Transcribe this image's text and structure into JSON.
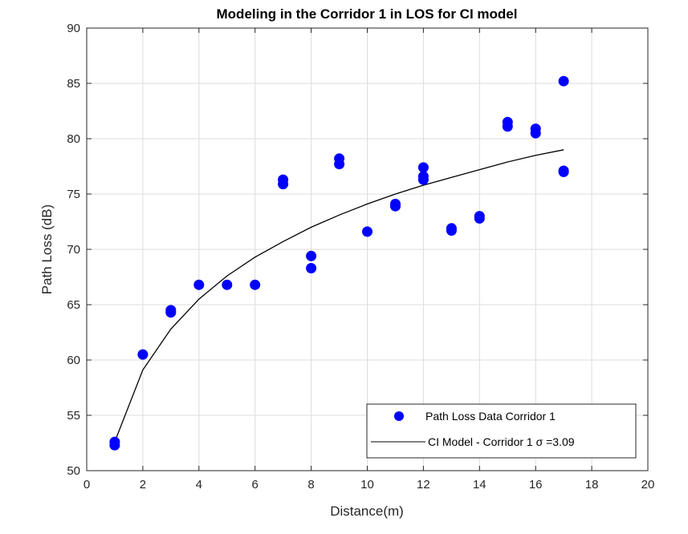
{
  "chart_data": {
    "type": "scatter",
    "title": "Modeling in the Corridor 1 in LOS for CI model",
    "xlabel": "Distance(m)",
    "ylabel": "Path Loss (dB)",
    "xlim": [
      0,
      20
    ],
    "ylim": [
      50,
      90
    ],
    "xticks": [
      0,
      2,
      4,
      6,
      8,
      10,
      12,
      14,
      16,
      18,
      20
    ],
    "yticks": [
      50,
      55,
      60,
      65,
      70,
      75,
      80,
      85,
      90
    ],
    "grid": true,
    "legend_position": "bottom-right",
    "series": [
      {
        "name": "Path Loss Data Corridor 1",
        "kind": "scatter",
        "color": "#0000ff",
        "points": [
          [
            1,
            52.3
          ],
          [
            1,
            52.6
          ],
          [
            2,
            60.5
          ],
          [
            3,
            64.3
          ],
          [
            3,
            64.5
          ],
          [
            4,
            66.8
          ],
          [
            5,
            66.8
          ],
          [
            6,
            66.8
          ],
          [
            7,
            75.9
          ],
          [
            7,
            76.3
          ],
          [
            8,
            68.3
          ],
          [
            8,
            69.4
          ],
          [
            9,
            77.7
          ],
          [
            9,
            78.2
          ],
          [
            10,
            71.6
          ],
          [
            11,
            73.9
          ],
          [
            11,
            74.1
          ],
          [
            12,
            76.3
          ],
          [
            12,
            76.6
          ],
          [
            12,
            77.4
          ],
          [
            13,
            71.7
          ],
          [
            13,
            71.9
          ],
          [
            14,
            72.8
          ],
          [
            14,
            73.0
          ],
          [
            15,
            81.1
          ],
          [
            15,
            81.5
          ],
          [
            16,
            80.5
          ],
          [
            16,
            80.9
          ],
          [
            17,
            77.0
          ],
          [
            17,
            77.1
          ],
          [
            17,
            85.2
          ]
        ]
      },
      {
        "name": "CI Model - Corridor 1 σ =3.09",
        "kind": "line",
        "color": "#000000",
        "x": [
          1,
          2,
          3,
          4,
          5,
          6,
          7,
          8,
          9,
          10,
          11,
          12,
          13,
          14,
          15,
          16,
          17
        ],
        "y": [
          52.6,
          59.1,
          62.8,
          65.5,
          67.6,
          69.3,
          70.7,
          72.0,
          73.1,
          74.1,
          75.0,
          75.8,
          76.5,
          77.2,
          77.9,
          78.5,
          79.0
        ]
      }
    ]
  }
}
